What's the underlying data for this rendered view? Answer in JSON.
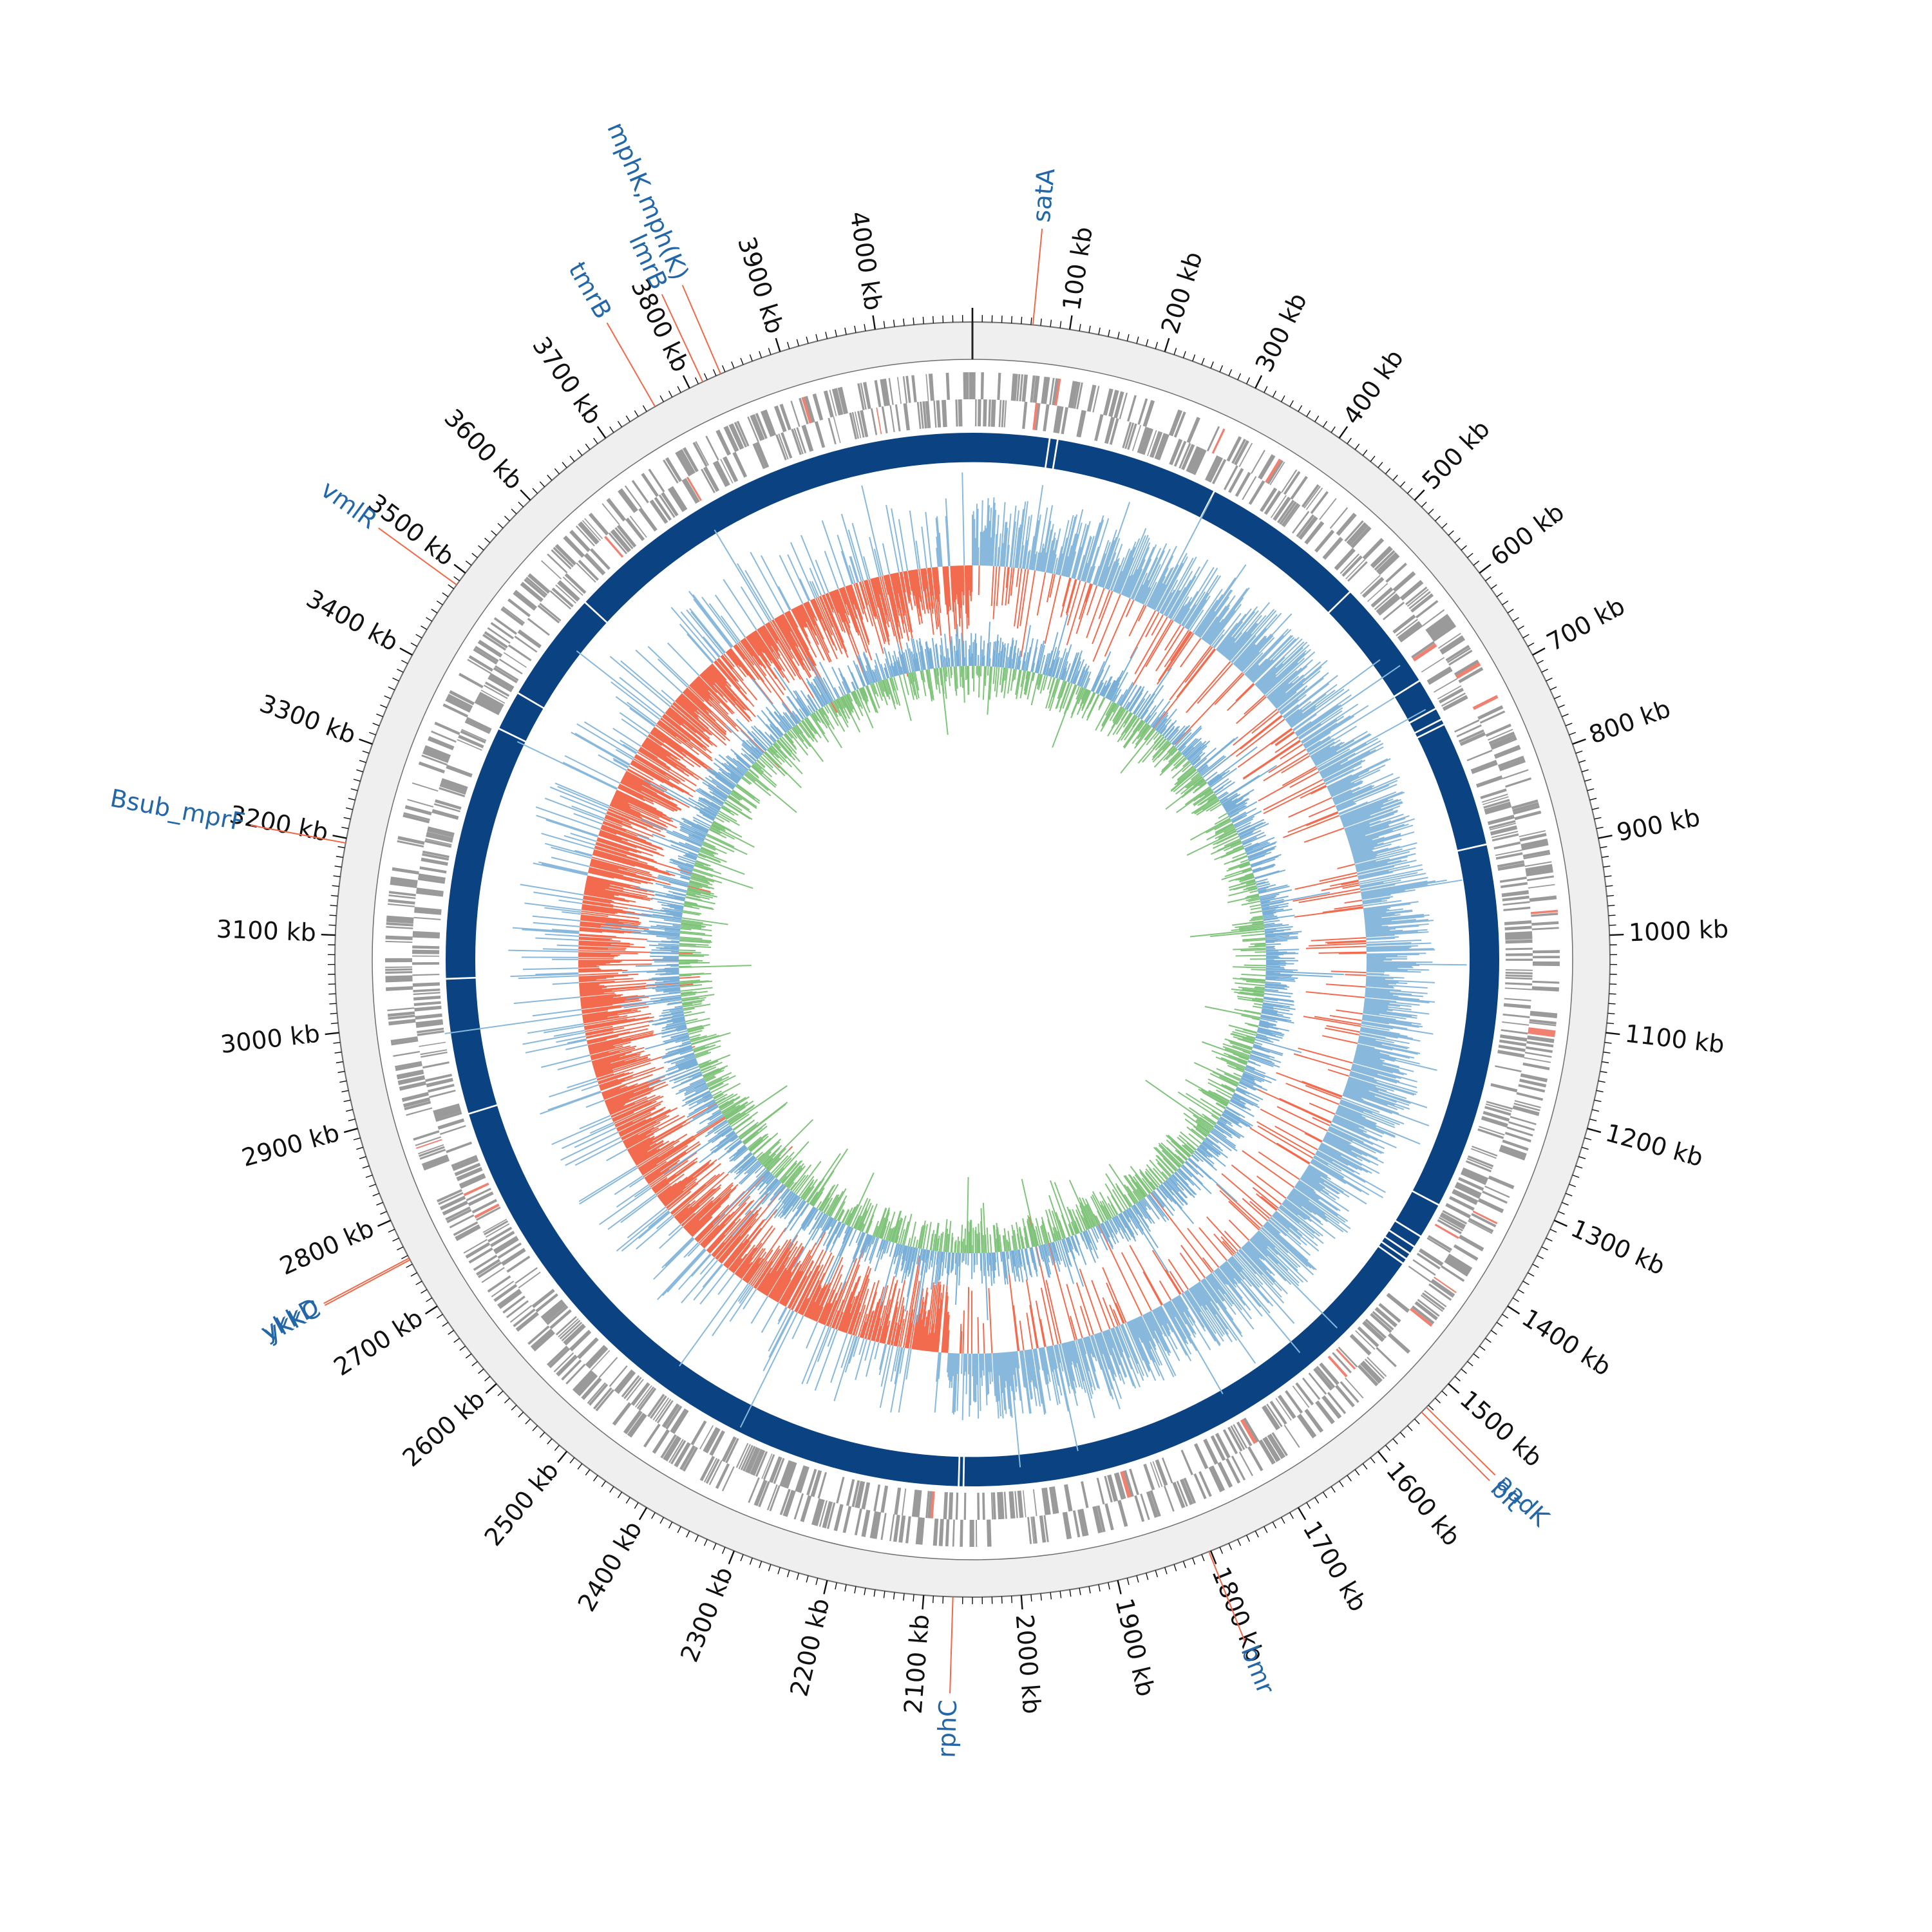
{
  "genome": {
    "length_kb": 4100,
    "tick_label_unit": "kb",
    "major_tick_step_kb": 100,
    "minor_tick_step_kb": 10,
    "tick_labels": [
      "100 kb",
      "200 kb",
      "300 kb",
      "400 kb",
      "500 kb",
      "600 kb",
      "700 kb",
      "800 kb",
      "900 kb",
      "1000 kb",
      "1100 kb",
      "1200 kb",
      "1300 kb",
      "1400 kb",
      "1500 kb",
      "1600 kb",
      "1700 kb",
      "1800 kb",
      "1900 kb",
      "2000 kb",
      "2100 kb",
      "2200 kb",
      "2300 kb",
      "2400 kb",
      "2500 kb",
      "2600 kb",
      "2700 kb",
      "2800 kb",
      "2900 kb",
      "3000 kb",
      "3100 kb",
      "3200 kb",
      "3300 kb",
      "3400 kb",
      "3500 kb",
      "3600 kb",
      "3700 kb",
      "3800 kb",
      "3900 kb",
      "4000 kb"
    ]
  },
  "colors": {
    "outer_ring": "#efefef",
    "outer_ring_border": "#6e6e6e",
    "cds_gray": "#9a9a9a",
    "cds_highlight": "#f08070",
    "contig_blue": "#0b4282",
    "contig_gap": "#ffffff",
    "skew_positive": "#88b8dc",
    "skew_negative": "#f26b4f",
    "gc_content": "#7fc47a",
    "gc_baseline": "#7ab0d8",
    "gene_label": "#2467a8",
    "gene_leader": "#f06848",
    "tick": "#111111"
  },
  "genes": [
    {
      "name": "satA",
      "position_kb": 62
    },
    {
      "name": "aadK",
      "position_kb": 1533
    },
    {
      "name": "blt",
      "position_kb": 1540
    },
    {
      "name": "bmr",
      "position_kb": 1802
    },
    {
      "name": "rphC",
      "position_kb": 2070
    },
    {
      "name": "ykkC",
      "position_kb": 2755
    },
    {
      "name": "ykkD",
      "position_kb": 2757
    },
    {
      "name": "Bsub_mprF",
      "position_kb": 3195
    },
    {
      "name": "vmlR",
      "position_kb": 3485
    },
    {
      "name": "tmrB",
      "position_kb": 3760
    },
    {
      "name": "lmrB",
      "position_kb": 3815
    },
    {
      "name": "mphK,mph(K)",
      "position_kb": 3835
    }
  ]
}
